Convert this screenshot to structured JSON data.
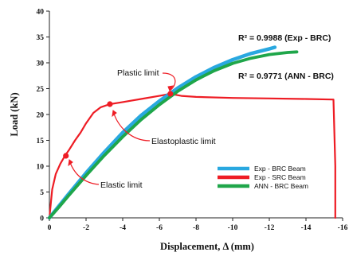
{
  "chart_data": {
    "type": "line",
    "xlabel": "Displacement, Δ  (mm)",
    "ylabel": "Load  (kN)",
    "xlim": [
      0,
      -16
    ],
    "ylim": [
      0,
      40
    ],
    "x_ticks": [
      0,
      -2,
      -4,
      -6,
      -8,
      -10,
      -12,
      -14,
      -16
    ],
    "x_tick_labels": [
      "0",
      "-2",
      "-4",
      "-6",
      "-8",
      "-10",
      "-12",
      "-14",
      "-16"
    ],
    "y_ticks": [
      0,
      5,
      10,
      15,
      20,
      25,
      30,
      35,
      40
    ],
    "y_tick_labels": [
      "0",
      "5",
      "10",
      "15",
      "20",
      "25",
      "30",
      "35",
      "40"
    ],
    "legend": {
      "placement": "bottom-right"
    },
    "series": [
      {
        "name": "Exp - BRC Beam",
        "color": "#29a8e0",
        "x": [
          0,
          -0.5,
          -1,
          -2,
          -3,
          -4,
          -5,
          -6,
          -7,
          -8,
          -9,
          -10,
          -11,
          -12,
          -12.3
        ],
        "y": [
          0,
          2.2,
          4.4,
          8.7,
          12.7,
          16.5,
          19.8,
          22.6,
          25.1,
          27.3,
          29.1,
          30.6,
          31.8,
          32.7,
          33.0
        ]
      },
      {
        "name": "Exp - SRC Beam",
        "color": "#ee1c24",
        "x": [
          0,
          -0.15,
          -0.35,
          -0.6,
          -0.85,
          -1.1,
          -1.4,
          -1.7,
          -2.0,
          -2.4,
          -2.8,
          -3.3,
          -4.0,
          -5.0,
          -6.0,
          -6.6,
          -7.2,
          -8,
          -10,
          -12,
          -14,
          -15.5,
          -15.6,
          -15.6
        ],
        "y": [
          0,
          5.5,
          8.5,
          10.5,
          12.0,
          13.3,
          15.0,
          16.5,
          18.3,
          20.3,
          21.4,
          22.0,
          22.4,
          23.0,
          23.6,
          24.0,
          23.6,
          23.4,
          23.2,
          23.1,
          23.0,
          22.9,
          10,
          0
        ]
      },
      {
        "name": "ANN - BRC Beam",
        "color": "#1fa64a",
        "x": [
          0,
          -0.5,
          -1,
          -2,
          -3,
          -4,
          -5,
          -6,
          -7,
          -8,
          -9,
          -10,
          -11,
          -12,
          -13,
          -13.5
        ],
        "y": [
          0,
          2.0,
          4.1,
          8.2,
          12.1,
          15.7,
          19.0,
          21.9,
          24.5,
          26.7,
          28.5,
          29.9,
          30.9,
          31.6,
          32.0,
          32.1
        ]
      }
    ],
    "markers": [
      {
        "x": -0.9,
        "y": 12.0,
        "color": "#ee1c24"
      },
      {
        "x": -3.3,
        "y": 22.0,
        "color": "#ee1c24"
      },
      {
        "x": -6.6,
        "y": 24.0,
        "color": "#ee1c24"
      }
    ],
    "annotations": [
      {
        "key": "plastic",
        "text": "Plastic limit",
        "target_x": -6.6,
        "target_y": 24.0
      },
      {
        "key": "elastoplastic",
        "text": "Elastoplastic limit",
        "target_x": -3.3,
        "target_y": 22.0
      },
      {
        "key": "elastic",
        "text": "Elastic limit",
        "target_x": -0.9,
        "target_y": 12.0
      },
      {
        "key": "r2_exp",
        "text": "R² = 0.9988  (Exp - BRC)"
      },
      {
        "key": "r2_ann",
        "text": "R² = 0.9771  (ANN - BRC)"
      }
    ]
  }
}
